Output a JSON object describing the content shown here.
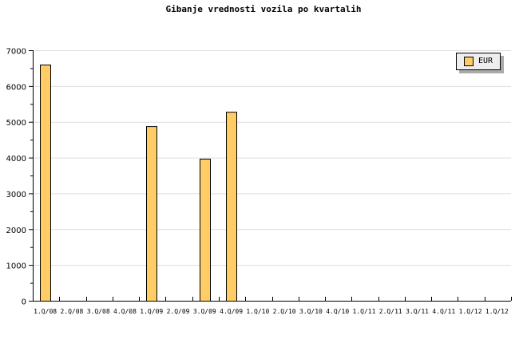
{
  "chart_data": {
    "type": "bar",
    "title": "Gibanje vrednosti vozila po kvartalih",
    "categories": [
      "1.Q/08",
      "2.Q/08",
      "3.Q/08",
      "4.Q/08",
      "1.Q/09",
      "2.Q/09",
      "3.Q/09",
      "4.Q/09",
      "1.Q/10",
      "2.Q/10",
      "3.Q/10",
      "4.Q/10",
      "1.Q/11",
      "2.Q/11",
      "3.Q/11",
      "4.Q/11",
      "1.Q/12",
      "1.Q/12"
    ],
    "series": [
      {
        "name": "EUR",
        "values": [
          6600,
          0,
          0,
          0,
          4880,
          0,
          3970,
          5280,
          0,
          0,
          0,
          0,
          0,
          0,
          0,
          0,
          0,
          0
        ],
        "color": "#ffcc66"
      }
    ],
    "ylim": [
      0,
      7000
    ],
    "yticks": [
      0,
      1000,
      2000,
      3000,
      4000,
      5000,
      6000,
      7000
    ],
    "grid": true,
    "legend": "top-right"
  }
}
